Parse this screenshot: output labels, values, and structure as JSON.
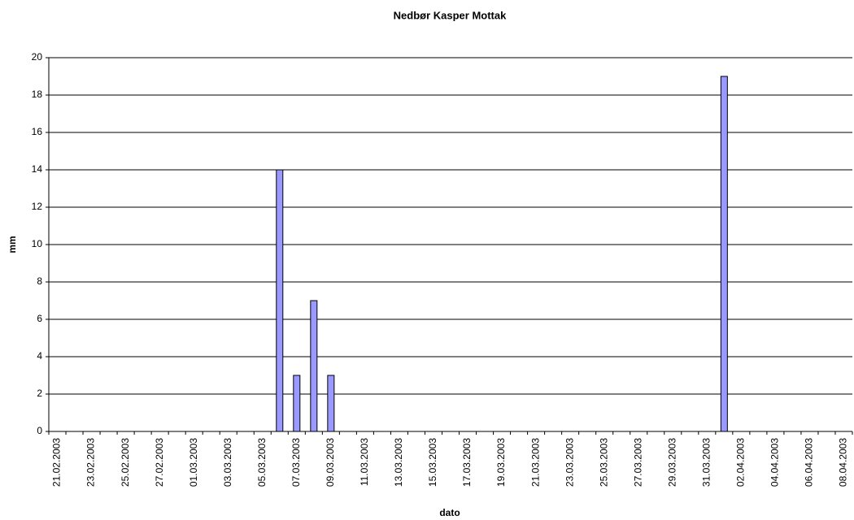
{
  "chart_data": {
    "type": "bar",
    "title": "Nedbør Kasper Mottak",
    "x_label": "dato",
    "y_label": "mm",
    "categories": [
      "21.02.2003",
      null,
      "23.02.2003",
      null,
      "25.02.2003",
      null,
      "27.02.2003",
      null,
      "01.03.2003",
      null,
      "03.03.2003",
      null,
      "05.03.2003",
      null,
      "07.03.2003",
      null,
      "09.03.2003",
      null,
      "11.03.2003",
      null,
      "13.03.2003",
      null,
      "15.03.2003",
      null,
      "17.03.2003",
      null,
      "19.03.2003",
      null,
      "21.03.2003",
      null,
      "23.03.2003",
      null,
      "25.03.2003",
      null,
      "27.03.2003",
      null,
      "29.03.2003",
      null,
      "31.03.2003",
      null,
      "02.04.2003",
      null,
      "04.04.2003",
      null,
      "06.04.2003",
      null,
      "08.04.2003"
    ],
    "values": [
      0,
      0,
      0,
      0,
      0,
      0,
      0,
      0,
      0,
      0,
      0,
      0,
      0,
      14,
      3,
      7,
      3,
      0,
      0,
      0,
      0,
      0,
      0,
      0,
      0,
      0,
      0,
      0,
      0,
      0,
      0,
      0,
      0,
      0,
      0,
      0,
      0,
      0,
      0,
      19,
      0,
      0,
      0,
      0,
      0,
      0,
      0
    ],
    "color": "#9999ff",
    "ylim": [
      0,
      20
    ],
    "yticks": [
      0,
      2,
      4,
      6,
      8,
      10,
      12,
      14,
      16,
      18,
      20
    ],
    "grid": true
  }
}
